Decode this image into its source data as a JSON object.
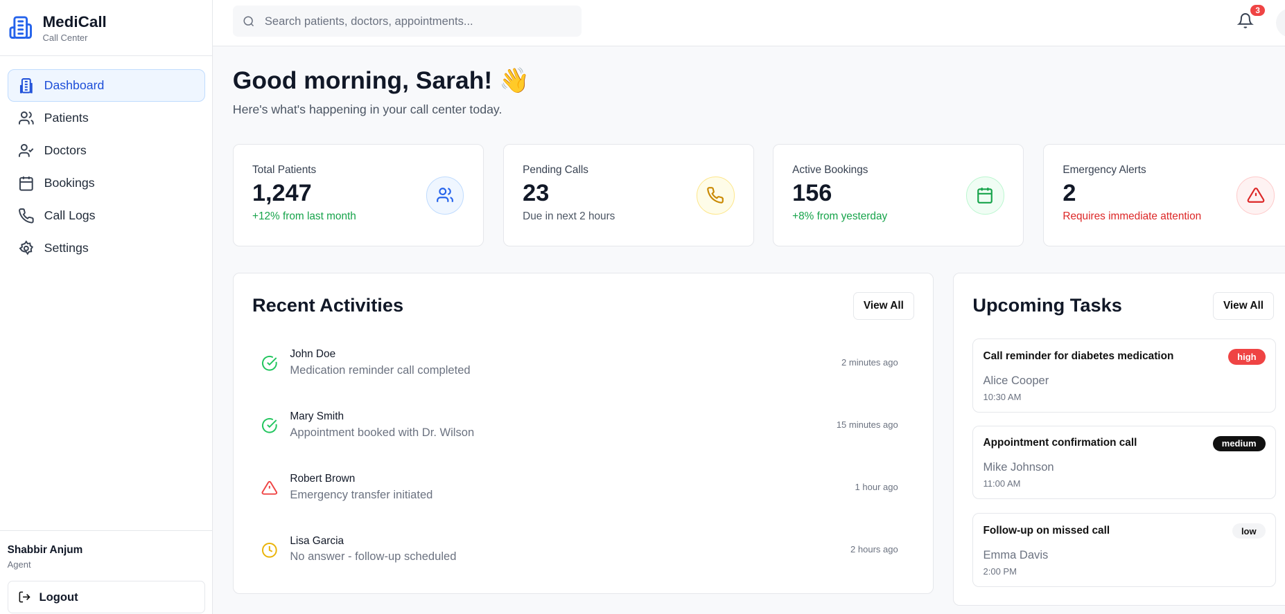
{
  "brand": {
    "name": "MediCall",
    "subtitle": "Call Center",
    "accent": "#2563eb"
  },
  "sidebar": {
    "items": [
      {
        "label": "Dashboard",
        "icon": "building-icon",
        "active": true
      },
      {
        "label": "Patients",
        "icon": "users-icon"
      },
      {
        "label": "Doctors",
        "icon": "user-check-icon"
      },
      {
        "label": "Bookings",
        "icon": "calendar-icon"
      },
      {
        "label": "Call Logs",
        "icon": "phone-icon"
      },
      {
        "label": "Settings",
        "icon": "gear-icon"
      }
    ]
  },
  "user": {
    "name": "Shabbir Anjum",
    "role": "Agent",
    "logout": "Logout"
  },
  "header": {
    "search_placeholder": "Search patients, doctors, appointments...",
    "notification_count": "3"
  },
  "greeting": {
    "title": "Good morning, Sarah! 👋",
    "subtitle": "Here's what's happening in your call center today."
  },
  "stats": [
    {
      "label": "Total Patients",
      "value": "1,247",
      "note": "+12% from last month",
      "note_color": "#16a34a",
      "icon": "users-icon"
    },
    {
      "label": "Pending Calls",
      "value": "23",
      "note": "Due in next 2 hours",
      "note_color": "#4b5563",
      "icon": "phone-icon"
    },
    {
      "label": "Active Bookings",
      "value": "156",
      "note": "+8% from yesterday",
      "note_color": "#16a34a",
      "icon": "calendar-icon"
    },
    {
      "label": "Emergency Alerts",
      "value": "2",
      "note": "Requires immediate attention",
      "note_color": "#dc2626",
      "icon": "alert-triangle-icon"
    }
  ],
  "activities": {
    "title": "Recent Activities",
    "view_all": "View All",
    "items": [
      {
        "name": "John Doe",
        "desc": "Medication reminder call completed",
        "time": "2 minutes ago",
        "status": "completed"
      },
      {
        "name": "Mary Smith",
        "desc": "Appointment booked with Dr. Wilson",
        "time": "15 minutes ago",
        "status": "completed"
      },
      {
        "name": "Robert Brown",
        "desc": "Emergency transfer initiated",
        "time": "1 hour ago",
        "status": "emergency"
      },
      {
        "name": "Lisa Garcia",
        "desc": "No answer - follow-up scheduled",
        "time": "2 hours ago",
        "status": "pending"
      }
    ]
  },
  "tasks": {
    "title": "Upcoming Tasks",
    "view_all": "View All",
    "items": [
      {
        "title": "Call reminder for diabetes medication",
        "patient": "Alice Cooper",
        "time": "10:30 AM",
        "priority": "high"
      },
      {
        "title": "Appointment confirmation call",
        "patient": "Mike Johnson",
        "time": "11:00 AM",
        "priority": "medium"
      },
      {
        "title": "Follow-up on missed call",
        "patient": "Emma Davis",
        "time": "2:00 PM",
        "priority": "low"
      }
    ]
  }
}
